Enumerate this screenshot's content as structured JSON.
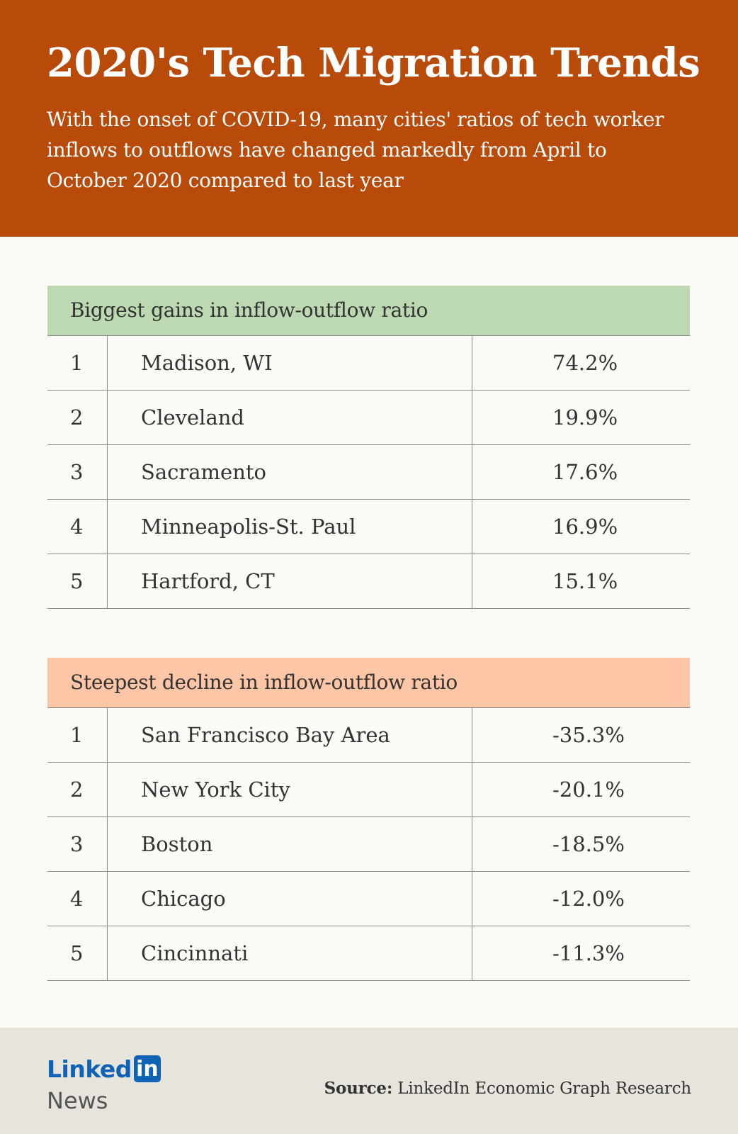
{
  "header": {
    "title": "2020's Tech Migration Trends",
    "subtitle": "With the onset of COVID-19, many cities' ratios of tech worker inflows to outflows have changed markedly from April to October 2020 compared to last year"
  },
  "gains": {
    "heading": "Biggest gains in inflow-outflow ratio",
    "rows": [
      {
        "rank": "1",
        "city": "Madison, WI",
        "value": "74.2%"
      },
      {
        "rank": "2",
        "city": "Cleveland",
        "value": "19.9%"
      },
      {
        "rank": "3",
        "city": "Sacramento",
        "value": "17.6%"
      },
      {
        "rank": "4",
        "city": "Minneapolis-St. Paul",
        "value": "16.9%"
      },
      {
        "rank": "5",
        "city": "Hartford, CT",
        "value": "15.1%"
      }
    ]
  },
  "declines": {
    "heading": "Steepest decline in inflow-outflow ratio",
    "rows": [
      {
        "rank": "1",
        "city": "San Francisco Bay Area",
        "value": "-35.3%"
      },
      {
        "rank": "2",
        "city": "New York City",
        "value": "-20.1%"
      },
      {
        "rank": "3",
        "city": "Boston",
        "value": "-18.5%"
      },
      {
        "rank": "4",
        "city": "Chicago",
        "value": "-12.0%"
      },
      {
        "rank": "5",
        "city": "Cincinnati",
        "value": "-11.3%"
      }
    ]
  },
  "footer": {
    "logo_word": "Linked",
    "logo_box": "in",
    "logo_sub": "News",
    "source_label": "Source:",
    "source_text": "LinkedIn Economic Graph Research"
  },
  "colors": {
    "header_bg": "#b84a0a",
    "gains_header_bg": "#bdd9b1",
    "declines_header_bg": "#fdc6a6",
    "brand_blue": "#1062b4",
    "footer_bg": "#e7e4dc"
  }
}
